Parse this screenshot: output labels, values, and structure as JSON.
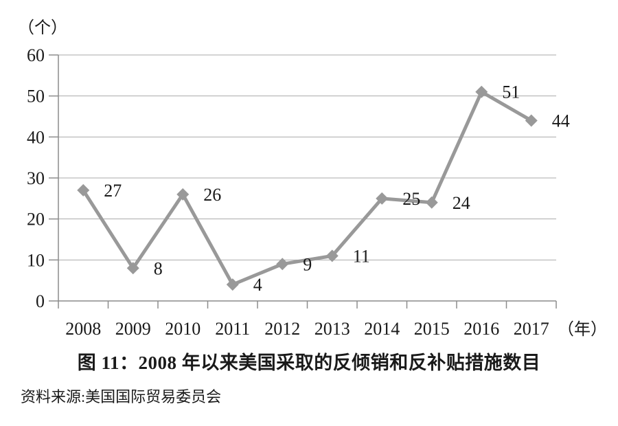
{
  "chart_data": {
    "type": "line",
    "title": "图 11：2008 年以来美国采取的反倾销和反补贴措施数目",
    "source": "资料来源:美国国际贸易委员会",
    "y_unit_label": "（个）",
    "x_unit_label": "（年）",
    "categories": [
      "2008",
      "2009",
      "2010",
      "2011",
      "2012",
      "2013",
      "2014",
      "2015",
      "2016",
      "2017"
    ],
    "series": [
      {
        "name": "反倾销和反补贴措施数目",
        "values": [
          27,
          8,
          26,
          4,
          9,
          11,
          25,
          24,
          51,
          44
        ]
      }
    ],
    "ylim": [
      0,
      60
    ],
    "yticks": [
      0,
      10,
      20,
      30,
      40,
      50,
      60
    ],
    "grid": true,
    "legend": "none",
    "data_labels": true,
    "colors": {
      "line": "#999999",
      "marker": "#999999",
      "gridline": "#a9a9a9",
      "axis": "#8c8c8c",
      "text": "#1a1a1a"
    }
  }
}
